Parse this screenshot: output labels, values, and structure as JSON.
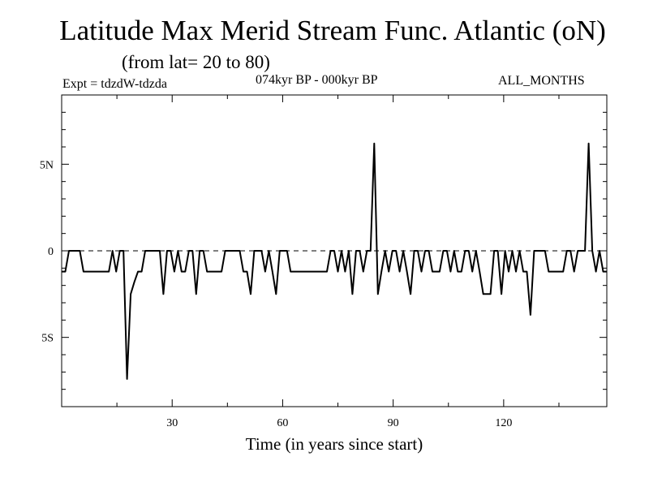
{
  "chart_data": {
    "type": "line",
    "title": "Latitude Max Merid Stream Func. Atlantic (oN)",
    "subtitle": "(from lat= 20 to 80)",
    "expt": "Expt = tdzdW-tdzda",
    "period": "074kyr BP - 000kyr BP",
    "months": "ALL_MONTHS",
    "xlabel": "Time (in years since start)",
    "ylabel": "",
    "xlim": [
      0,
      148
    ],
    "ylim": [
      -9,
      9
    ],
    "x_ticks": [
      30,
      60,
      90,
      120
    ],
    "y_ticks": [
      {
        "value": 5,
        "label": "5N"
      },
      {
        "value": 0,
        "label": "0"
      },
      {
        "value": -5,
        "label": "5S"
      }
    ],
    "reference_line": {
      "value": 0,
      "style": "dashed"
    },
    "grid": false,
    "series": [
      {
        "values": [
          -1.2,
          -1.2,
          0,
          0,
          0,
          0,
          -1.2,
          -1.2,
          -1.2,
          -1.2,
          -1.2,
          -1.2,
          -1.2,
          -1.2,
          0,
          -1.2,
          0,
          0,
          -7.4,
          -2.5,
          -1.8,
          -1.2,
          -1.2,
          0,
          0,
          0,
          0,
          0,
          -2.5,
          0,
          0,
          -1.2,
          0,
          -1.2,
          -1.2,
          0,
          0,
          -2.5,
          0,
          0,
          -1.2,
          -1.2,
          -1.2,
          -1.2,
          -1.2,
          0,
          0,
          0,
          0,
          0,
          -1.2,
          -1.2,
          -2.5,
          0,
          0,
          0,
          -1.2,
          0,
          -1.2,
          -2.5,
          0,
          0,
          0,
          -1.2,
          -1.2,
          -1.2,
          -1.2,
          -1.2,
          -1.2,
          -1.2,
          -1.2,
          -1.2,
          -1.2,
          -1.2,
          0,
          0,
          -1.2,
          0,
          -1.2,
          0,
          -2.5,
          0,
          0,
          -1.2,
          0,
          0,
          6.2,
          -2.5,
          -1.2,
          0,
          -1.2,
          0,
          0,
          -1.2,
          0,
          -1.2,
          -2.5,
          0,
          0,
          -1.2,
          0,
          0,
          -1.2,
          -1.2,
          -1.2,
          0,
          0,
          -1.2,
          0,
          -1.2,
          -1.2,
          0,
          0,
          -1.2,
          0,
          -1.2,
          -2.5,
          -2.5,
          -2.5,
          0,
          0,
          -2.5,
          0,
          -1.2,
          0,
          -1.2,
          0,
          -1.2,
          -1.2,
          -3.7,
          0,
          0,
          0,
          0,
          -1.2,
          -1.2,
          -1.2,
          -1.2,
          -1.2,
          0,
          0,
          -1.2,
          0,
          0,
          0,
          6.2,
          0,
          -1.2,
          0,
          -1.2,
          -1.2
        ]
      }
    ]
  }
}
